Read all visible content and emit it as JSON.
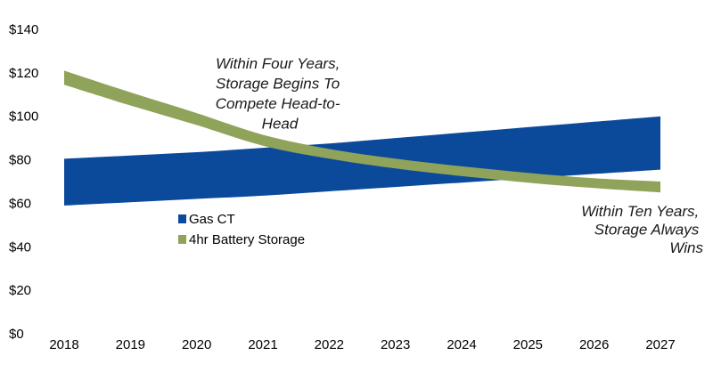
{
  "chart_data": {
    "type": "area",
    "title": "",
    "xlabel": "",
    "ylabel": "",
    "x": [
      "2018",
      "2019",
      "2020",
      "2021",
      "2022",
      "2023",
      "2024",
      "2025",
      "2026",
      "2027"
    ],
    "ylim": [
      0,
      140
    ],
    "yticks": [
      "$0",
      "$20",
      "$40",
      "$60",
      "$80",
      "$100",
      "$120",
      "$140"
    ],
    "grid": false,
    "legend_position": "center-left",
    "series": [
      {
        "name": "Gas CT",
        "color": "#0b4a9b",
        "kind": "range-band",
        "lower": [
          59,
          60.5,
          62,
          63.5,
          65.5,
          67.5,
          69.5,
          71.5,
          73.5,
          75.5
        ],
        "upper": [
          80.5,
          82,
          83.5,
          85.5,
          87.5,
          90,
          92.5,
          95,
          97.5,
          100
        ]
      },
      {
        "name": "4hr Battery Storage",
        "color": "#8fa35a",
        "kind": "range-band",
        "lower": [
          114.5,
          105,
          96,
          86.5,
          80.5,
          76,
          72.5,
          69.5,
          67,
          65
        ],
        "upper": [
          121,
          111,
          101.5,
          91.5,
          85,
          80.5,
          77,
          74,
          71.5,
          70
        ]
      }
    ],
    "annotations": [
      {
        "lines": [
          "Within Four Years,",
          "Storage Begins To",
          "Compete Head-to-",
          "Head"
        ]
      },
      {
        "lines": [
          "Within Ten Years,",
          "Storage Always",
          "Wins"
        ]
      }
    ]
  }
}
